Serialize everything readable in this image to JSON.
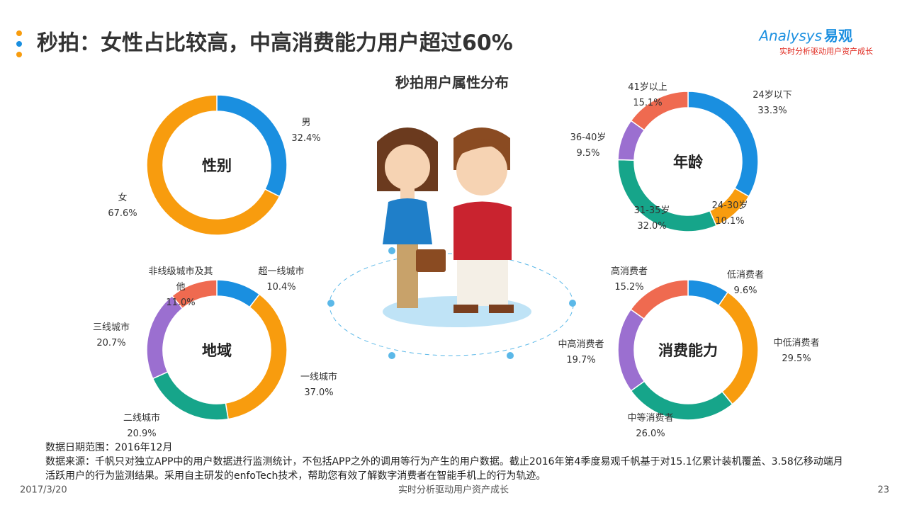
{
  "header": {
    "title": "秒拍：女性占比较高，中高消费能力用户超过60%",
    "subtitle": "秒拍用户属性分布"
  },
  "logo": {
    "brand": "Analysys",
    "brand_cn": "易观",
    "slogan": "实时分析驱动用户资产成长"
  },
  "chart_data": [
    {
      "type": "donut",
      "title": "性别",
      "categories": [
        "男",
        "女"
      ],
      "values": [
        32.4,
        67.6
      ],
      "value_labels": [
        "32.4%",
        "67.6%"
      ],
      "colors": [
        "#1a8fe0",
        "#f89c0e"
      ]
    },
    {
      "type": "donut",
      "title": "年龄",
      "categories": [
        "24岁以下",
        "24-30岁",
        "31-35岁",
        "36-40岁",
        "41岁以上"
      ],
      "values": [
        33.3,
        10.1,
        32.0,
        9.5,
        15.1
      ],
      "value_labels": [
        "33.3%",
        "10.1%",
        "32.0%",
        "9.5%",
        "15.1%"
      ],
      "colors": [
        "#1a8fe0",
        "#f89c0e",
        "#16a58a",
        "#9b6fd0",
        "#ef6a50"
      ]
    },
    {
      "type": "donut",
      "title": "地域",
      "categories": [
        "超一线城市",
        "一线城市",
        "二线城市",
        "三线城市",
        "非线级城市及其他"
      ],
      "values": [
        10.4,
        37.0,
        20.9,
        20.7,
        11.0
      ],
      "value_labels": [
        "10.4%",
        "37.0%",
        "20.9%",
        "20.7%",
        "11.0%"
      ],
      "colors": [
        "#1a8fe0",
        "#f89c0e",
        "#16a58a",
        "#9b6fd0",
        "#ef6a50"
      ]
    },
    {
      "type": "donut",
      "title": "消费能力",
      "categories": [
        "低消费者",
        "中低消费者",
        "中等消费者",
        "中高消费者",
        "高消费者"
      ],
      "values": [
        9.6,
        29.5,
        26.0,
        19.7,
        15.2
      ],
      "value_labels": [
        "9.6%",
        "29.5%",
        "26.0%",
        "19.7%",
        "15.2%"
      ],
      "colors": [
        "#1a8fe0",
        "#f89c0e",
        "#16a58a",
        "#9b6fd0",
        "#ef6a50"
      ]
    }
  ],
  "notes": [
    "数据日期范围：2016年12月",
    "数据来源：千帆只对独立APP中的用户数据进行监测统计，不包括APP之外的调用等行为产生的用户数据。截止2016年第4季度易观千帆基于对15.1亿累计装机覆盖、3.58亿移动端月活跃用户的行为监测结果。采用自主研发的enfoTech技术，帮助您有效了解数字消费者在智能手机上的行为轨迹。"
  ],
  "footer": {
    "date": "2017/3/20",
    "slogan": "实时分析驱动用户资产成长",
    "page": "23"
  }
}
